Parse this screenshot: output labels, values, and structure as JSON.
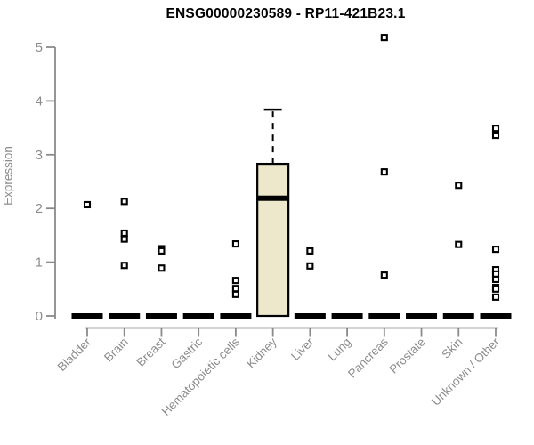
{
  "chart_data": {
    "type": "boxplot",
    "title": "ENSG00000230589 - RP11-421B23.1",
    "ylabel": "Expression",
    "xlabel": "",
    "ylim": [
      0,
      5
    ],
    "yticks": [
      0,
      1,
      2,
      3,
      4,
      5
    ],
    "grid": false,
    "legend_position": "none",
    "categories": [
      "Bladder",
      "Brain",
      "Breast",
      "Gastric",
      "Hematopoietic cells",
      "Kidney",
      "Liver",
      "Lung",
      "Pancreas",
      "Prostate",
      "Skin",
      "Unknown / Other"
    ],
    "boxes": [
      {
        "category": "Bladder",
        "q1": 0,
        "median": 0,
        "q3": 0,
        "whisker_low": 0,
        "whisker_high": 0,
        "outliers": [
          2.07
        ]
      },
      {
        "category": "Brain",
        "q1": 0,
        "median": 0,
        "q3": 0,
        "whisker_low": 0,
        "whisker_high": 0,
        "outliers": [
          2.13,
          1.54,
          1.43,
          0.94
        ]
      },
      {
        "category": "Breast",
        "q1": 0,
        "median": 0,
        "q3": 0,
        "whisker_low": 0,
        "whisker_high": 0,
        "outliers": [
          1.25,
          1.21,
          0.89
        ]
      },
      {
        "category": "Gastric",
        "q1": 0,
        "median": 0,
        "q3": 0,
        "whisker_low": 0,
        "whisker_high": 0,
        "outliers": []
      },
      {
        "category": "Hematopoietic cells",
        "q1": 0,
        "median": 0,
        "q3": 0,
        "whisker_low": 0,
        "whisker_high": 0,
        "outliers": [
          1.34,
          0.66,
          0.51,
          0.4
        ]
      },
      {
        "category": "Kidney",
        "q1": 0,
        "median": 2.19,
        "q3": 2.83,
        "whisker_low": 0,
        "whisker_high": 3.84,
        "outliers": []
      },
      {
        "category": "Liver",
        "q1": 0,
        "median": 0,
        "q3": 0,
        "whisker_low": 0,
        "whisker_high": 0,
        "outliers": [
          1.21,
          0.93
        ]
      },
      {
        "category": "Lung",
        "q1": 0,
        "median": 0,
        "q3": 0,
        "whisker_low": 0,
        "whisker_high": 0,
        "outliers": []
      },
      {
        "category": "Pancreas",
        "q1": 0,
        "median": 0,
        "q3": 0,
        "whisker_low": 0,
        "whisker_high": 0,
        "outliers": [
          5.18,
          2.68,
          0.76
        ]
      },
      {
        "category": "Prostate",
        "q1": 0,
        "median": 0,
        "q3": 0,
        "whisker_low": 0,
        "whisker_high": 0,
        "outliers": []
      },
      {
        "category": "Skin",
        "q1": 0,
        "median": 0,
        "q3": 0,
        "whisker_low": 0,
        "whisker_high": 0,
        "outliers": [
          2.43,
          1.33
        ]
      },
      {
        "category": "Unknown / Other",
        "q1": 0,
        "median": 0,
        "q3": 0,
        "whisker_low": 0,
        "whisker_high": 0,
        "outliers": [
          3.49,
          3.36,
          1.24,
          0.86,
          0.78,
          0.68,
          0.53,
          0.5,
          0.35
        ]
      }
    ],
    "colors": {
      "box_fill": "#EDE8CC",
      "box_stroke": "#000000",
      "median": "#000000",
      "outlier_stroke": "#000000",
      "outlier_fill": "#FFFFFF",
      "axis": "#8A8A8A",
      "tick_label": "#8C8C8C",
      "title": "#000000",
      "background": "#FFFFFF"
    }
  }
}
